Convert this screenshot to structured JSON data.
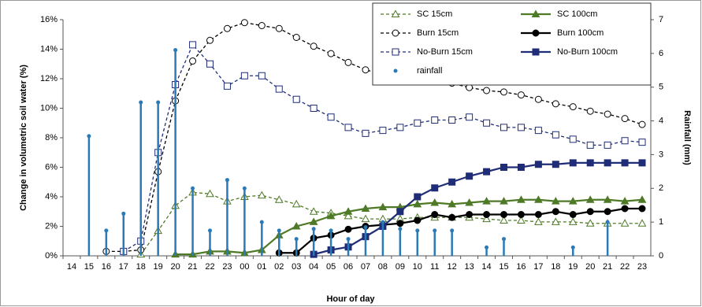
{
  "chart_data": {
    "type": "line",
    "x_label": "Hour of day",
    "y_label": "Change in volumetric soil water (%)",
    "y2_label": "Rainfall (mm)",
    "categories": [
      "14",
      "15",
      "16",
      "17",
      "18",
      "19",
      "20",
      "21",
      "22",
      "23",
      "00",
      "01",
      "02",
      "03",
      "04",
      "05",
      "06",
      "07",
      "08",
      "09",
      "10",
      "11",
      "12",
      "13",
      "14",
      "15",
      "16",
      "17",
      "18",
      "19",
      "20",
      "21",
      "22",
      "23"
    ],
    "ylim": [
      0,
      16
    ],
    "yticks": [
      {
        "value": 0,
        "label": "0%"
      },
      {
        "value": 2,
        "label": "2%"
      },
      {
        "value": 4,
        "label": "4%"
      },
      {
        "value": 6,
        "label": "6%"
      },
      {
        "value": 8,
        "label": "8%"
      },
      {
        "value": 10,
        "label": "10%"
      },
      {
        "value": 12,
        "label": "12%"
      },
      {
        "value": 14,
        "label": "14%"
      },
      {
        "value": 16,
        "label": "16%"
      }
    ],
    "y2lim": [
      0,
      7
    ],
    "y2ticks": [
      0,
      1,
      2,
      3,
      4,
      5,
      6,
      7
    ],
    "legend": "top-right",
    "series": [
      {
        "name": "SC 15cm",
        "color": "#4e7a27",
        "marker": "triangle-open",
        "dash": true,
        "values": [
          null,
          null,
          null,
          null,
          0.1,
          1.7,
          3.4,
          4.3,
          4.2,
          3.7,
          4.0,
          4.1,
          3.8,
          3.5,
          3.0,
          2.9,
          2.7,
          2.5,
          2.5,
          2.5,
          2.6,
          2.6,
          2.6,
          2.6,
          2.5,
          2.4,
          2.4,
          2.3,
          2.3,
          2.3,
          2.2,
          2.2,
          2.2,
          2.2
        ]
      },
      {
        "name": "SC 100cm",
        "color": "#4e7a27",
        "marker": "triangle",
        "dash": false,
        "values": [
          null,
          null,
          null,
          null,
          null,
          null,
          0.1,
          0.1,
          0.3,
          0.3,
          0.2,
          0.4,
          1.4,
          2.0,
          2.3,
          2.7,
          3.0,
          3.2,
          3.3,
          3.3,
          3.5,
          3.6,
          3.5,
          3.6,
          3.7,
          3.7,
          3.8,
          3.8,
          3.7,
          3.7,
          3.8,
          3.8,
          3.7,
          3.8
        ]
      },
      {
        "name": "Burn 15cm",
        "color": "#000000",
        "marker": "circle-open",
        "dash": true,
        "values": [
          null,
          null,
          0.3,
          0.3,
          0.4,
          5.7,
          10.5,
          13.2,
          14.6,
          15.4,
          15.8,
          15.6,
          15.4,
          14.8,
          14.2,
          13.7,
          13.1,
          12.6,
          12.3,
          12.3,
          12.1,
          11.9,
          11.7,
          11.4,
          11.2,
          11.1,
          10.9,
          10.6,
          10.3,
          10.1,
          9.8,
          9.6,
          9.3,
          8.9
        ]
      },
      {
        "name": "Burn 100cm",
        "color": "#000000",
        "marker": "circle",
        "dash": false,
        "values": [
          null,
          null,
          null,
          null,
          null,
          null,
          null,
          null,
          null,
          null,
          null,
          null,
          0.2,
          0.2,
          1.2,
          1.4,
          1.8,
          2.0,
          2.1,
          2.2,
          2.4,
          2.8,
          2.6,
          2.8,
          2.8,
          2.8,
          2.8,
          2.8,
          3.0,
          2.8,
          3.0,
          3.0,
          3.2,
          3.2
        ]
      },
      {
        "name": "No-Burn 15cm",
        "color": "#1f2d78",
        "marker": "square-open",
        "dash": true,
        "values": [
          null,
          null,
          null,
          0.3,
          1.0,
          7.0,
          11.6,
          14.3,
          13.0,
          11.5,
          12.2,
          12.2,
          11.3,
          10.6,
          10.0,
          9.4,
          8.7,
          8.3,
          8.5,
          8.7,
          9.0,
          9.2,
          9.2,
          9.4,
          9.0,
          8.7,
          8.7,
          8.5,
          8.2,
          7.9,
          7.5,
          7.5,
          7.8,
          7.7
        ]
      },
      {
        "name": "No-Burn 100cm",
        "color": "#1f2d78",
        "marker": "square",
        "dash": false,
        "values": [
          null,
          null,
          null,
          null,
          null,
          null,
          null,
          null,
          null,
          null,
          null,
          null,
          null,
          null,
          0.1,
          0.4,
          0.6,
          1.3,
          2.0,
          3.0,
          4.0,
          4.6,
          5.0,
          5.4,
          5.7,
          6.0,
          6.0,
          6.2,
          6.2,
          6.3,
          6.3,
          6.3,
          6.3,
          6.3
        ]
      },
      {
        "name": "rainfall",
        "color": "#2a7ab8",
        "marker": "stem",
        "axis": "y2",
        "values": [
          null,
          3.55,
          0.75,
          1.25,
          4.55,
          4.55,
          6.1,
          2.0,
          0.75,
          2.25,
          2.0,
          1.0,
          0.75,
          0.5,
          0.8,
          0.75,
          0.5,
          0.85,
          1.0,
          0.8,
          0.75,
          0.75,
          0.75,
          null,
          0.25,
          0.5,
          null,
          null,
          null,
          0.25,
          null,
          1.0,
          null,
          null
        ]
      }
    ]
  }
}
